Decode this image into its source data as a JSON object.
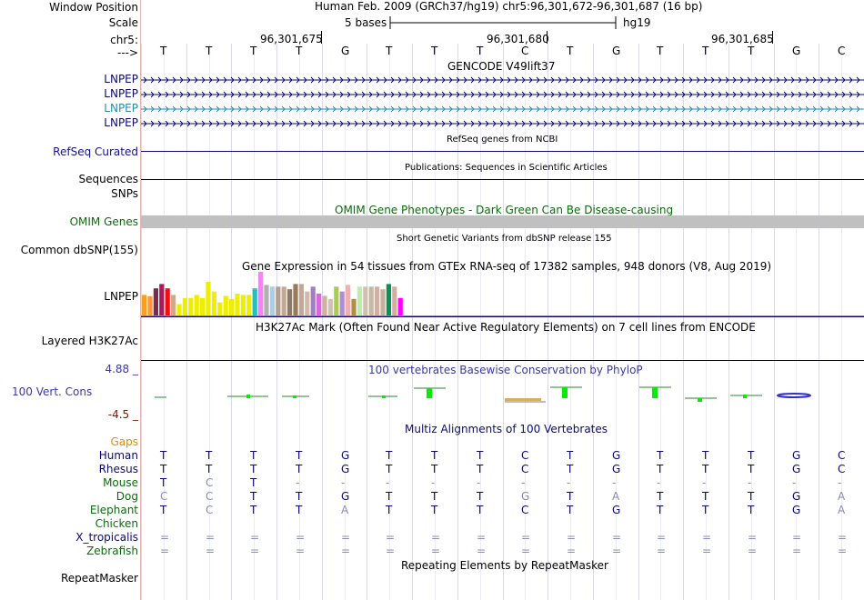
{
  "header": {
    "window_position_label": "Window Position",
    "scale_label": "Scale",
    "chrom_label": "chr5:",
    "strand_label": "--->",
    "title": "Human Feb. 2009 (GRCh37/hg19)   chr5:96,301,672-96,301,687 (16 bp)",
    "scale_text": "5 bases",
    "assembly": "hg19",
    "ruler_ticks": [
      "96,301,675",
      "96,301,680",
      "96,301,685"
    ]
  },
  "bases": [
    "T",
    "T",
    "T",
    "T",
    "G",
    "T",
    "T",
    "T",
    "C",
    "T",
    "G",
    "T",
    "T",
    "T",
    "G",
    "C"
  ],
  "tracks": {
    "gencode": {
      "title": "GENCODE V49lift37",
      "genes": [
        "LNPEP",
        "LNPEP",
        "LNPEP",
        "LNPEP"
      ],
      "colors": [
        "#0a0a6e",
        "#0a0a6e",
        "#2a8ab0",
        "#0a0a6e"
      ]
    },
    "refseq": {
      "label": "RefSeq Curated",
      "title": "RefSeq genes from NCBI"
    },
    "publications": {
      "label": "Sequences",
      "title": "Publications: Sequences in Scientific Articles"
    },
    "snps": {
      "label": "SNPs"
    },
    "omim": {
      "label": "OMIM Genes",
      "title": "OMIM Gene Phenotypes - Dark Green Can Be Disease-causing"
    },
    "dbsnp": {
      "label": "Common dbSNP(155)",
      "title": "Short Genetic Variants from dbSNP release 155"
    },
    "gtex": {
      "label": "LNPEP",
      "title": "Gene Expression in 54 tissues from GTEx RNA-seq of 17382 samples, 948 donors (V8, Aug 2019)"
    },
    "h3k27ac": {
      "label": "Layered H3K27Ac",
      "title": "H3K27Ac Mark (Often Found Near Active Regulatory Elements) on 7 cell lines from ENCODE"
    },
    "phylop": {
      "label": "100 Vert. Cons",
      "title": "100 vertebrates Basewise Conservation by PhyloP",
      "max": "4.88 _",
      "min": "-4.5 _"
    },
    "multiz": {
      "title": "Multiz Alignments of 100 Vertebrates",
      "gaps_label": "Gaps",
      "species": [
        {
          "name": "Human",
          "seq": [
            "T",
            "T",
            "T",
            "T",
            "G",
            "T",
            "T",
            "T",
            "C",
            "T",
            "G",
            "T",
            "T",
            "T",
            "G",
            "C"
          ]
        },
        {
          "name": "Rhesus",
          "seq": [
            "T",
            "T",
            "T",
            "T",
            "G",
            "T",
            "T",
            "T",
            "C",
            "T",
            "G",
            "T",
            "T",
            "T",
            "G",
            "C"
          ]
        },
        {
          "name": "Mouse",
          "seq": [
            "T",
            "C",
            "T",
            "-",
            "-",
            "-",
            "-",
            "-",
            "-",
            "-",
            "-",
            "-",
            "-",
            "-",
            "-",
            "-"
          ]
        },
        {
          "name": "Dog",
          "seq": [
            "C",
            "C",
            "T",
            "T",
            "G",
            "T",
            "T",
            "T",
            "G",
            "T",
            "A",
            "T",
            "T",
            "T",
            "G",
            "A"
          ]
        },
        {
          "name": "Elephant",
          "seq": [
            "T",
            "C",
            "T",
            "T",
            "A",
            "T",
            "T",
            "T",
            "C",
            "T",
            "G",
            "T",
            "T",
            "T",
            "G",
            "A"
          ]
        },
        {
          "name": "Chicken",
          "seq": []
        },
        {
          "name": "X_tropicalis",
          "seq": [
            "=",
            "=",
            "=",
            "=",
            "=",
            "=",
            "=",
            "=",
            "=",
            "=",
            "=",
            "=",
            "=",
            "=",
            "=",
            "="
          ]
        },
        {
          "name": "Zebrafish",
          "seq": [
            "=",
            "=",
            "=",
            "=",
            "=",
            "=",
            "=",
            "=",
            "=",
            "=",
            "=",
            "=",
            "=",
            "=",
            "=",
            "="
          ]
        }
      ]
    },
    "repeatmasker": {
      "label": "RepeatMasker",
      "title": "Repeating Elements by RepeatMasker"
    }
  },
  "colors": {
    "navy": "#0a0a6e",
    "omim_bar": "#c0c0c0",
    "base_dim": "#8a8ab8"
  },
  "gtex_bars": [
    {
      "h": 0.47,
      "c": "#f4a020"
    },
    {
      "h": 0.44,
      "c": "#ff9a30"
    },
    {
      "h": 0.62,
      "c": "#7a2a4a"
    },
    {
      "h": 0.72,
      "c": "#aa1a5a"
    },
    {
      "h": 0.62,
      "c": "#ee1010"
    },
    {
      "h": 0.47,
      "c": "#cfa890"
    },
    {
      "h": 0.26,
      "c": "#eeee00"
    },
    {
      "h": 0.4,
      "c": "#eeee00"
    },
    {
      "h": 0.4,
      "c": "#eeee00"
    },
    {
      "h": 0.47,
      "c": "#eeee00"
    },
    {
      "h": 0.4,
      "c": "#eeee00"
    },
    {
      "h": 0.77,
      "c": "#eeee00"
    },
    {
      "h": 0.55,
      "c": "#eeee00"
    },
    {
      "h": 0.3,
      "c": "#eeee00"
    },
    {
      "h": 0.45,
      "c": "#eeee00"
    },
    {
      "h": 0.38,
      "c": "#eeee00"
    },
    {
      "h": 0.5,
      "c": "#eeee00"
    },
    {
      "h": 0.47,
      "c": "#eeee00"
    },
    {
      "h": 0.47,
      "c": "#eeee00"
    },
    {
      "h": 0.62,
      "c": "#20c0c0"
    },
    {
      "h": 1.0,
      "c": "#ee88ee"
    },
    {
      "h": 0.7,
      "c": "#b0b0b0"
    },
    {
      "h": 0.66,
      "c": "#aaccee"
    },
    {
      "h": 0.66,
      "c": "#b0a090"
    },
    {
      "h": 0.66,
      "c": "#c4a896"
    },
    {
      "h": 0.6,
      "c": "#8a7a6a"
    },
    {
      "h": 0.72,
      "c": "#9a7a5a"
    },
    {
      "h": 0.72,
      "c": "#c4a896"
    },
    {
      "h": 0.55,
      "c": "#d4b8a8"
    },
    {
      "h": 0.66,
      "c": "#a080c0"
    },
    {
      "h": 0.5,
      "c": "#dd66dd"
    },
    {
      "h": 0.45,
      "c": "#d0b0a0"
    },
    {
      "h": 0.38,
      "c": "#d4c0b0"
    },
    {
      "h": 0.66,
      "c": "#aacc55"
    },
    {
      "h": 0.55,
      "c": "#b08fd0"
    },
    {
      "h": 0.7,
      "c": "#f0b0b0"
    },
    {
      "h": 0.38,
      "c": "#b09040"
    },
    {
      "h": 0.66,
      "c": "#bbeeaa"
    },
    {
      "h": 0.66,
      "c": "#d0c0b0"
    },
    {
      "h": 0.66,
      "c": "#c8b8a8"
    },
    {
      "h": 0.66,
      "c": "#d0b0a0"
    },
    {
      "h": 0.6,
      "c": "#c8b0a0"
    },
    {
      "h": 0.72,
      "c": "#109050"
    },
    {
      "h": 0.66,
      "c": "#cfb0a0"
    },
    {
      "h": 0.4,
      "c": "#ff00ff"
    }
  ]
}
